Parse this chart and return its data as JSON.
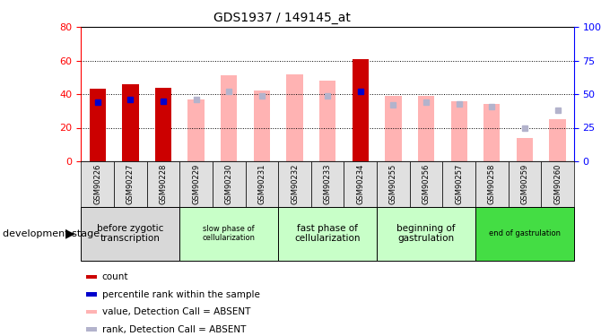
{
  "title": "GDS1937 / 149145_at",
  "samples": [
    "GSM90226",
    "GSM90227",
    "GSM90228",
    "GSM90229",
    "GSM90230",
    "GSM90231",
    "GSM90232",
    "GSM90233",
    "GSM90234",
    "GSM90255",
    "GSM90256",
    "GSM90257",
    "GSM90258",
    "GSM90259",
    "GSM90260"
  ],
  "count_values": [
    43,
    46,
    44,
    null,
    null,
    null,
    null,
    null,
    61,
    null,
    null,
    null,
    null,
    null,
    null
  ],
  "rank_values": [
    44,
    46,
    45,
    null,
    null,
    null,
    null,
    null,
    52,
    null,
    null,
    null,
    null,
    null,
    null
  ],
  "value_absent": [
    null,
    null,
    null,
    37,
    51,
    42,
    52,
    48,
    null,
    39,
    39,
    36,
    34,
    14,
    25
  ],
  "rank_absent": [
    null,
    null,
    null,
    46,
    52,
    49,
    null,
    49,
    null,
    42,
    44,
    43,
    41,
    25,
    38
  ],
  "ylim_left": [
    0,
    80
  ],
  "ylim_right": [
    0,
    100
  ],
  "yticks_left": [
    0,
    20,
    40,
    60,
    80
  ],
  "yticks_right": [
    0,
    25,
    50,
    75,
    100
  ],
  "color_count": "#cc0000",
  "color_rank": "#0000cc",
  "color_value_absent": "#ffb3b3",
  "color_rank_absent": "#b3b3cc",
  "stages": [
    {
      "label": "before zygotic\ntranscription",
      "start": 0,
      "end": 3,
      "color": "#d8d8d8"
    },
    {
      "label": "slow phase of\ncellularization",
      "start": 3,
      "end": 6,
      "color": "#c8ffc8"
    },
    {
      "label": "fast phase of\ncellularization",
      "start": 6,
      "end": 9,
      "color": "#c8ffc8"
    },
    {
      "label": "beginning of\ngastrulation",
      "start": 9,
      "end": 12,
      "color": "#c8ffc8"
    },
    {
      "label": "end of gastrulation",
      "start": 12,
      "end": 15,
      "color": "#44dd44"
    }
  ],
  "legend_items": [
    {
      "label": "count",
      "color": "#cc0000"
    },
    {
      "label": "percentile rank within the sample",
      "color": "#0000cc"
    },
    {
      "label": "value, Detection Call = ABSENT",
      "color": "#ffb3b3"
    },
    {
      "label": "rank, Detection Call = ABSENT",
      "color": "#b3b3cc"
    }
  ]
}
